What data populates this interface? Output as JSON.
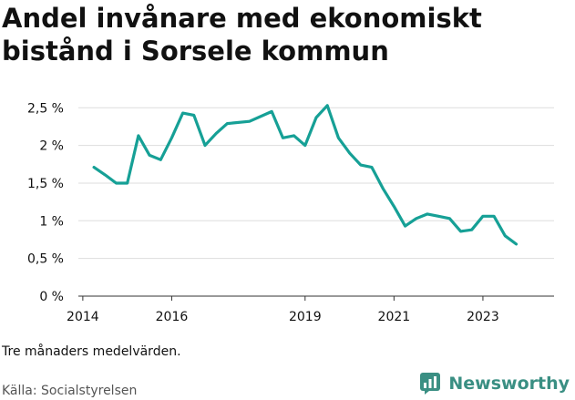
{
  "chart_data": {
    "type": "line",
    "title": "Andel invånare med ekonomiskt bistånd i Sorsele kommun",
    "note": "Tre månaders medelvärden.",
    "source": "Källa: Socialstyrelsen",
    "brand": "Newsworthy",
    "line_color": "#16a096",
    "ylim": [
      0,
      2.6
    ],
    "yticks": [
      0,
      0.5,
      1,
      1.5,
      2,
      2.5
    ],
    "ytick_labels": [
      "0 %",
      "0,5 %",
      "1 %",
      "1,5 %",
      "2 %",
      "2,5 %"
    ],
    "xlim": [
      2013.9,
      2024.6
    ],
    "xticks": [
      2014,
      2016,
      2019,
      2021,
      2023
    ],
    "xtick_labels": [
      "2014",
      "2016",
      "2019",
      "2021",
      "2023"
    ],
    "grid": true,
    "series": [
      {
        "x": [
          2014.25,
          2014.5,
          2014.75,
          2015.0,
          2015.25,
          2015.5,
          2015.75,
          2016.0,
          2016.25,
          2016.5,
          2016.75,
          2017.0,
          2017.25,
          2017.75,
          2018.25,
          2018.5,
          2018.75,
          2019.0,
          2019.25,
          2019.5,
          2019.75,
          2020.0,
          2020.25,
          2020.5,
          2020.75,
          2021.0,
          2021.25,
          2021.5,
          2021.75,
          2022.0,
          2022.25,
          2022.5,
          2022.75,
          2023.0,
          2023.25,
          2023.5,
          2023.75
        ],
        "y": [
          1.71,
          1.61,
          1.5,
          1.5,
          2.13,
          1.87,
          1.81,
          2.1,
          2.43,
          2.4,
          2.0,
          2.16,
          2.29,
          2.32,
          2.45,
          2.1,
          2.13,
          2.0,
          2.37,
          2.53,
          2.1,
          1.9,
          1.74,
          1.71,
          1.43,
          1.19,
          0.93,
          1.03,
          1.09,
          1.06,
          1.03,
          0.86,
          0.88,
          1.06,
          1.06,
          0.8,
          0.69
        ]
      }
    ]
  }
}
